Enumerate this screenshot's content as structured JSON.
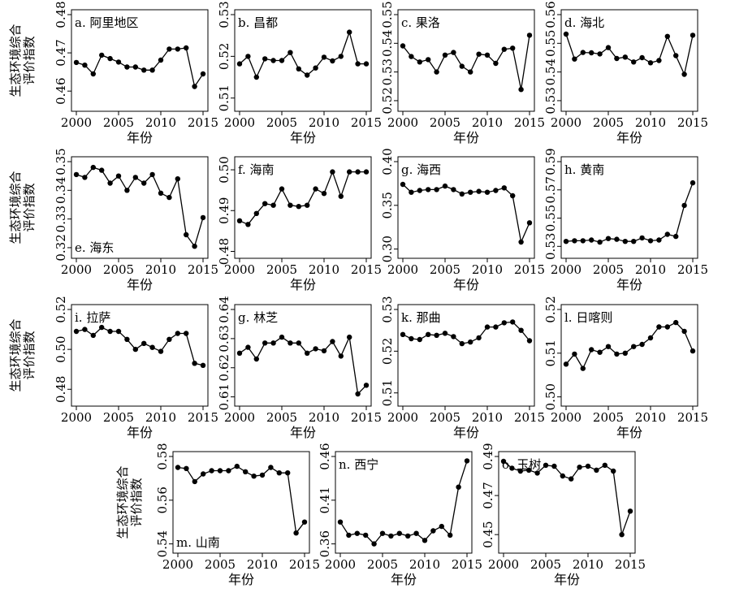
{
  "figure": {
    "ylabel_lines": [
      "生态环境综合",
      "评价指数"
    ],
    "xlabel": "年份"
  },
  "chart_data": [
    {
      "type": "line",
      "title": "a. 阿里地区",
      "xlabel": "年份",
      "ylabel": "生态环境综合评价指数",
      "xlim": [
        2000,
        2015
      ],
      "ylim": [
        0.456,
        0.48
      ],
      "xticks": [
        "2000",
        "2005",
        "2010",
        "2015"
      ],
      "yticks": [
        "0.46",
        "0.47",
        "0.48"
      ],
      "x": [
        2000,
        2001,
        2002,
        2003,
        2004,
        2005,
        2006,
        2007,
        2008,
        2009,
        2010,
        2011,
        2012,
        2013,
        2014,
        2015
      ],
      "values": [
        0.4675,
        0.4668,
        0.4645,
        0.4694,
        0.4685,
        0.4676,
        0.4663,
        0.4663,
        0.4655,
        0.4655,
        0.4681,
        0.471,
        0.471,
        0.4713,
        0.4612,
        0.4645
      ]
    },
    {
      "type": "line",
      "title": "b. 昌都",
      "xlabel": "年份",
      "ylabel": "",
      "xlim": [
        2000,
        2015
      ],
      "ylim": [
        0.508,
        0.53
      ],
      "xticks": [
        "2000",
        "2005",
        "2010",
        "2015"
      ],
      "yticks": [
        "0.51",
        "0.52",
        "0.53"
      ],
      "x": [
        2000,
        2001,
        2002,
        2003,
        2004,
        2005,
        2006,
        2007,
        2008,
        2009,
        2010,
        2011,
        2012,
        2013,
        2014,
        2015
      ],
      "values": [
        0.5182,
        0.52,
        0.515,
        0.5194,
        0.519,
        0.519,
        0.5209,
        0.517,
        0.5155,
        0.5172,
        0.5198,
        0.5189,
        0.52,
        0.5258,
        0.5182,
        0.5182
      ]
    },
    {
      "type": "line",
      "title": "c. 果洛",
      "xlabel": "年份",
      "ylabel": "",
      "xlim": [
        2000,
        2015
      ],
      "ylim": [
        0.518,
        0.55
      ],
      "xticks": [
        "2000",
        "2005",
        "2010",
        "2015"
      ],
      "yticks": [
        "0.52",
        "0.53",
        "0.54",
        "0.55"
      ],
      "x": [
        2000,
        2001,
        2002,
        2003,
        2004,
        2005,
        2006,
        2007,
        2008,
        2009,
        2010,
        2011,
        2012,
        2013,
        2014,
        2015
      ],
      "values": [
        0.5391,
        0.5354,
        0.5335,
        0.5343,
        0.53,
        0.5359,
        0.5368,
        0.532,
        0.53,
        0.5362,
        0.5359,
        0.533,
        0.5379,
        0.5383,
        0.5239,
        0.5428
      ]
    },
    {
      "type": "line",
      "title": "d. 海北",
      "xlabel": "年份",
      "ylabel": "",
      "xlim": [
        2000,
        2015
      ],
      "ylim": [
        0.528,
        0.56
      ],
      "xticks": [
        "2000",
        "2005",
        "2010",
        "2015"
      ],
      "yticks": [
        "0.53",
        "0.54",
        "0.55",
        "0.56"
      ],
      "x": [
        2000,
        2001,
        2002,
        2003,
        2004,
        2005,
        2006,
        2007,
        2008,
        2009,
        2010,
        2011,
        2012,
        2013,
        2014,
        2015
      ],
      "values": [
        0.5532,
        0.5445,
        0.5468,
        0.5467,
        0.5463,
        0.5485,
        0.5447,
        0.5452,
        0.5435,
        0.545,
        0.5432,
        0.544,
        0.5524,
        0.5457,
        0.5392,
        0.5528
      ]
    },
    {
      "type": "line",
      "title": "e. 海东",
      "xlabel": "年份",
      "ylabel": "生态环境综合评价指数",
      "xlim": [
        2000,
        2015
      ],
      "ylim": [
        0.318,
        0.35
      ],
      "xticks": [
        "2000",
        "2005",
        "2010",
        "2015"
      ],
      "yticks": [
        "0.32",
        "0.33",
        "0.34",
        "0.35"
      ],
      "x": [
        2000,
        2001,
        2002,
        2003,
        2004,
        2005,
        2006,
        2007,
        2008,
        2009,
        2010,
        2011,
        2012,
        2013,
        2014,
        2015
      ],
      "values": [
        0.3455,
        0.3445,
        0.348,
        0.347,
        0.3425,
        0.345,
        0.34,
        0.3445,
        0.3425,
        0.3455,
        0.339,
        0.3375,
        0.344,
        0.3245,
        0.3205,
        0.3305
      ]
    },
    {
      "type": "line",
      "title": "f. 海南",
      "xlabel": "年份",
      "ylabel": "",
      "xlim": [
        2000,
        2015
      ],
      "ylim": [
        0.4795,
        0.502
      ],
      "xticks": [
        "2000",
        "2005",
        "2010",
        "2015"
      ],
      "yticks": [
        "0.48",
        "0.49",
        "0.50"
      ],
      "x": [
        2000,
        2001,
        2002,
        2003,
        2004,
        2005,
        2006,
        2007,
        2008,
        2009,
        2010,
        2011,
        2012,
        2013,
        2014,
        2015
      ],
      "values": [
        0.4875,
        0.4866,
        0.4893,
        0.4917,
        0.4913,
        0.4953,
        0.4913,
        0.491,
        0.4913,
        0.4953,
        0.4942,
        0.4995,
        0.4935,
        0.4995,
        0.4995,
        0.4995
      ]
    },
    {
      "type": "line",
      "title": "g. 海西",
      "xlabel": "年份",
      "ylabel": "",
      "xlim": [
        2000,
        2015
      ],
      "ylim": [
        0.295,
        0.4
      ],
      "xticks": [
        "2000",
        "2005",
        "2010",
        "2015"
      ],
      "yticks": [
        "0.30",
        "0.35",
        "0.40"
      ],
      "x": [
        2000,
        2001,
        2002,
        2003,
        2004,
        2005,
        2006,
        2007,
        2008,
        2009,
        2010,
        2011,
        2012,
        2013,
        2014,
        2015
      ],
      "values": [
        0.374,
        0.365,
        0.367,
        0.368,
        0.368,
        0.372,
        0.368,
        0.363,
        0.365,
        0.366,
        0.365,
        0.367,
        0.37,
        0.361,
        0.308,
        0.33
      ]
    },
    {
      "type": "line",
      "title": "h. 黄南",
      "xlabel": "年份",
      "ylabel": "",
      "xlim": [
        2000,
        2015
      ],
      "ylim": [
        0.525,
        0.59
      ],
      "xticks": [
        "2000",
        "2005",
        "2010",
        "2015"
      ],
      "yticks": [
        "0.53",
        "0.55",
        "0.57",
        "0.59"
      ],
      "x": [
        2000,
        2001,
        2002,
        2003,
        2004,
        2005,
        2006,
        2007,
        2008,
        2009,
        2010,
        2011,
        2012,
        2013,
        2014,
        2015
      ],
      "values": [
        0.5335,
        0.534,
        0.534,
        0.5345,
        0.533,
        0.5355,
        0.535,
        0.5335,
        0.5335,
        0.536,
        0.534,
        0.5345,
        0.5385,
        0.537,
        0.559,
        0.575
      ]
    },
    {
      "type": "line",
      "title": "i. 拉萨",
      "xlabel": "年份",
      "ylabel": "生态环境综合评价指数",
      "xlim": [
        2000,
        2015
      ],
      "ylim": [
        0.474,
        0.52
      ],
      "xticks": [
        "2000",
        "2005",
        "2010",
        "2015"
      ],
      "yticks": [
        "0.48",
        "0.50",
        "0.52"
      ],
      "x": [
        2000,
        2001,
        2002,
        2003,
        2004,
        2005,
        2006,
        2007,
        2008,
        2009,
        2010,
        2011,
        2012,
        2013,
        2014,
        2015
      ],
      "values": [
        0.509,
        0.51,
        0.507,
        0.511,
        0.509,
        0.509,
        0.505,
        0.5,
        0.503,
        0.501,
        0.499,
        0.505,
        0.508,
        0.508,
        0.493,
        0.492
      ]
    },
    {
      "type": "line",
      "title": "g. 林芝",
      "xlabel": "年份",
      "ylabel": "",
      "xlim": [
        2000,
        2015
      ],
      "ylim": [
        0.6085,
        0.64
      ],
      "xticks": [
        "2000",
        "2005",
        "2010",
        "2015"
      ],
      "yticks": [
        "0.61",
        "0.62",
        "0.63",
        "0.64"
      ],
      "x": [
        2000,
        2001,
        2002,
        2003,
        2004,
        2005,
        2006,
        2007,
        2008,
        2009,
        2010,
        2011,
        2012,
        2013,
        2014,
        2015
      ],
      "values": [
        0.625,
        0.627,
        0.623,
        0.6285,
        0.6285,
        0.6305,
        0.6285,
        0.6285,
        0.625,
        0.6265,
        0.6258,
        0.629,
        0.624,
        0.6305,
        0.611,
        0.614
      ]
    },
    {
      "type": "line",
      "title": "k. 那曲",
      "xlabel": "年份",
      "ylabel": "",
      "xlim": [
        2000,
        2015
      ],
      "ylim": [
        0.508,
        0.53
      ],
      "xticks": [
        "2000",
        "2005",
        "2010",
        "2015"
      ],
      "yticks": [
        "0.51",
        "0.52",
        "0.53"
      ],
      "x": [
        2000,
        2001,
        2002,
        2003,
        2004,
        2005,
        2006,
        2007,
        2008,
        2009,
        2010,
        2011,
        2012,
        2013,
        2014,
        2015
      ],
      "values": [
        0.524,
        0.523,
        0.5228,
        0.524,
        0.5238,
        0.5243,
        0.5235,
        0.5218,
        0.5222,
        0.5232,
        0.5258,
        0.5258,
        0.5268,
        0.527,
        0.525,
        0.5225
      ]
    },
    {
      "type": "line",
      "title": "l. 日喀则",
      "xlabel": "年份",
      "ylabel": "",
      "xlim": [
        2000,
        2015
      ],
      "ylim": [
        0.499,
        0.52
      ],
      "xticks": [
        "2000",
        "2005",
        "2010",
        "2015"
      ],
      "yticks": [
        "0.50",
        "0.51",
        "0.52"
      ],
      "x": [
        2000,
        2001,
        2002,
        2003,
        2004,
        2005,
        2006,
        2007,
        2008,
        2009,
        2010,
        2011,
        2012,
        2013,
        2014,
        2015
      ],
      "values": [
        0.5075,
        0.5098,
        0.5065,
        0.5108,
        0.5102,
        0.5115,
        0.5098,
        0.51,
        0.5115,
        0.512,
        0.5135,
        0.516,
        0.516,
        0.517,
        0.515,
        0.5105
      ]
    },
    {
      "type": "line",
      "title": "m. 山南",
      "xlabel": "年份",
      "ylabel": "生态环境综合评价指数",
      "xlim": [
        2000,
        2015
      ],
      "ylim": [
        0.538,
        0.58
      ],
      "xticks": [
        "2000",
        "2005",
        "2010",
        "2015"
      ],
      "yticks": [
        "0.54",
        "0.56",
        "0.58"
      ],
      "x": [
        2000,
        2001,
        2002,
        2003,
        2004,
        2005,
        2006,
        2007,
        2008,
        2009,
        2010,
        2011,
        2012,
        2013,
        2014,
        2015
      ],
      "values": [
        0.575,
        0.5745,
        0.5685,
        0.572,
        0.5735,
        0.5735,
        0.5735,
        0.5755,
        0.573,
        0.571,
        0.5715,
        0.575,
        0.5725,
        0.5725,
        0.545,
        0.55
      ]
    },
    {
      "type": "line",
      "title": "n. 西宁",
      "xlabel": "年份",
      "ylabel": "",
      "xlim": [
        2000,
        2015
      ],
      "ylim": [
        0.355,
        0.46
      ],
      "xticks": [
        "2000",
        "2005",
        "2010",
        "2015"
      ],
      "yticks": [
        "0.36",
        "0.41",
        "0.46"
      ],
      "x": [
        2000,
        2001,
        2002,
        2003,
        2004,
        2005,
        2006,
        2007,
        2008,
        2009,
        2010,
        2011,
        2012,
        2013,
        2014,
        2015
      ],
      "values": [
        0.385,
        0.37,
        0.372,
        0.37,
        0.36,
        0.372,
        0.369,
        0.372,
        0.369,
        0.372,
        0.364,
        0.375,
        0.38,
        0.37,
        0.425,
        0.455
      ]
    },
    {
      "type": "line",
      "title": "o. 玉树",
      "xlabel": "年份",
      "ylabel": "",
      "xlim": [
        2000,
        2015
      ],
      "ylim": [
        0.443,
        0.49
      ],
      "xticks": [
        "2000",
        "2005",
        "2010",
        "2015"
      ],
      "yticks": [
        "0.45",
        "0.47",
        "0.49"
      ],
      "x": [
        2000,
        2001,
        2002,
        2003,
        2004,
        2005,
        2006,
        2007,
        2008,
        2009,
        2010,
        2011,
        2012,
        2013,
        2014,
        2015
      ],
      "values": [
        0.4875,
        0.484,
        0.4825,
        0.483,
        0.4815,
        0.4855,
        0.485,
        0.48,
        0.4785,
        0.4845,
        0.485,
        0.483,
        0.4855,
        0.4825,
        0.45,
        0.462
      ]
    }
  ]
}
